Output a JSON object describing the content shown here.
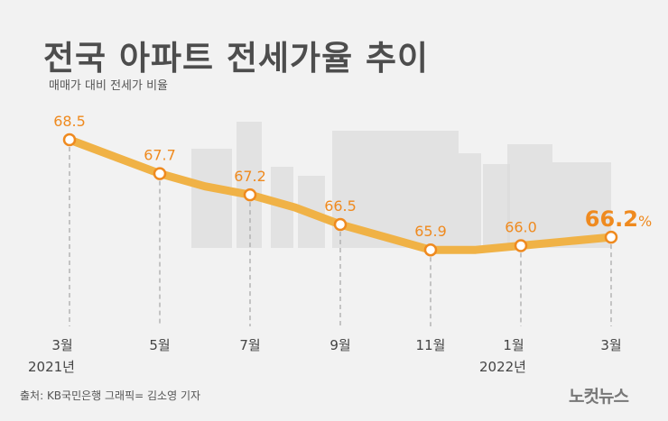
{
  "title": "전국 아파트 전세가율 추이",
  "subtitle": "매매가 대비 전세가 비율",
  "source": "출처: KB국민은행   그래픽= 김소영 기자",
  "logo": "노컷뉴스",
  "colors": {
    "line": "#f0b246",
    "label": "#ef8a1f",
    "axis_text": "#444444",
    "background": "#f2f2f2",
    "buildings": "#dcdcdc"
  },
  "chart_data": {
    "type": "line",
    "title": "전국 아파트 전세가율 추이",
    "ylabel": "매매가 대비 전세가 비율",
    "unit": "%",
    "x": [
      "2021-03",
      "2021-04",
      "2021-05",
      "2021-06",
      "2021-07",
      "2021-08",
      "2021-09",
      "2021-10",
      "2021-11",
      "2021-12",
      "2022-01",
      "2022-02",
      "2022-03"
    ],
    "values": [
      68.5,
      68.1,
      67.7,
      67.4,
      67.2,
      66.9,
      66.5,
      66.2,
      65.9,
      65.9,
      66.0,
      66.1,
      66.2
    ],
    "labeled_points": [
      {
        "x": "2021-03",
        "value": "68.5"
      },
      {
        "x": "2021-05",
        "value": "67.7"
      },
      {
        "x": "2021-07",
        "value": "67.2"
      },
      {
        "x": "2021-09",
        "value": "66.5"
      },
      {
        "x": "2021-11",
        "value": "65.9"
      },
      {
        "x": "2022-01",
        "value": "66.0"
      },
      {
        "x": "2022-03",
        "value": "66.2",
        "suffix": "%"
      }
    ],
    "tick_labels": [
      {
        "month": "3월",
        "year": "2021년"
      },
      {
        "month": "5월",
        "year": ""
      },
      {
        "month": "7월",
        "year": ""
      },
      {
        "month": "9월",
        "year": ""
      },
      {
        "month": "11월",
        "year": ""
      },
      {
        "month": "1월",
        "year": "2022년"
      },
      {
        "month": "3월",
        "year": ""
      }
    ],
    "grid": false
  }
}
